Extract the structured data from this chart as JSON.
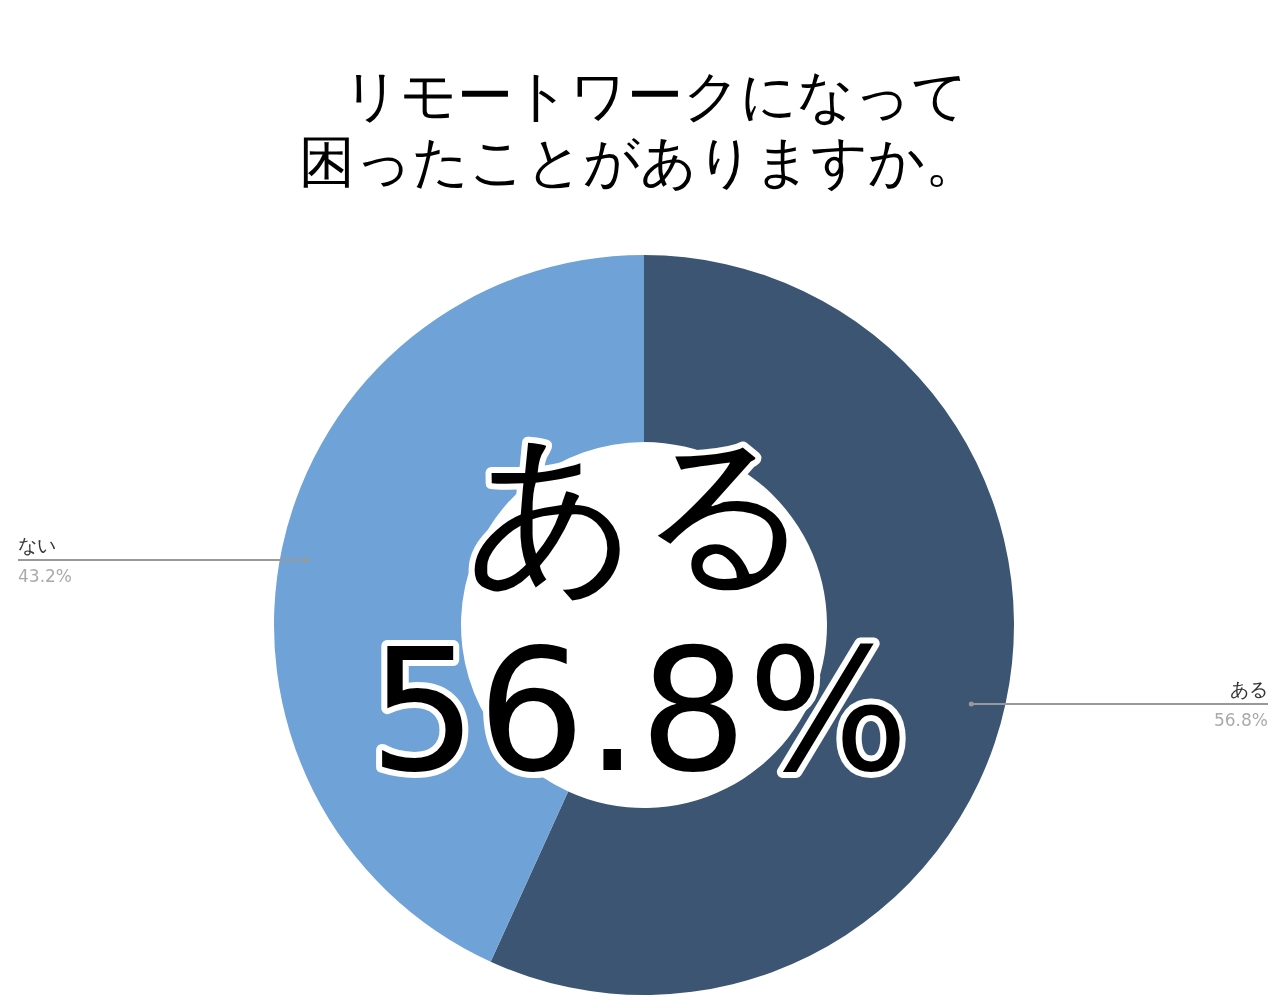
{
  "chart_data": {
    "type": "donut",
    "title": "リモートワークになって困ったことがありますか。",
    "categories": [
      "ある",
      "ない"
    ],
    "values": [
      56.8,
      43.2
    ],
    "value_labels": [
      "56.8%",
      "43.2%"
    ],
    "colors": [
      "#3b5573",
      "#6fa2d6"
    ],
    "annotations": [
      "ある",
      "56.8%"
    ],
    "legend": false
  }
}
